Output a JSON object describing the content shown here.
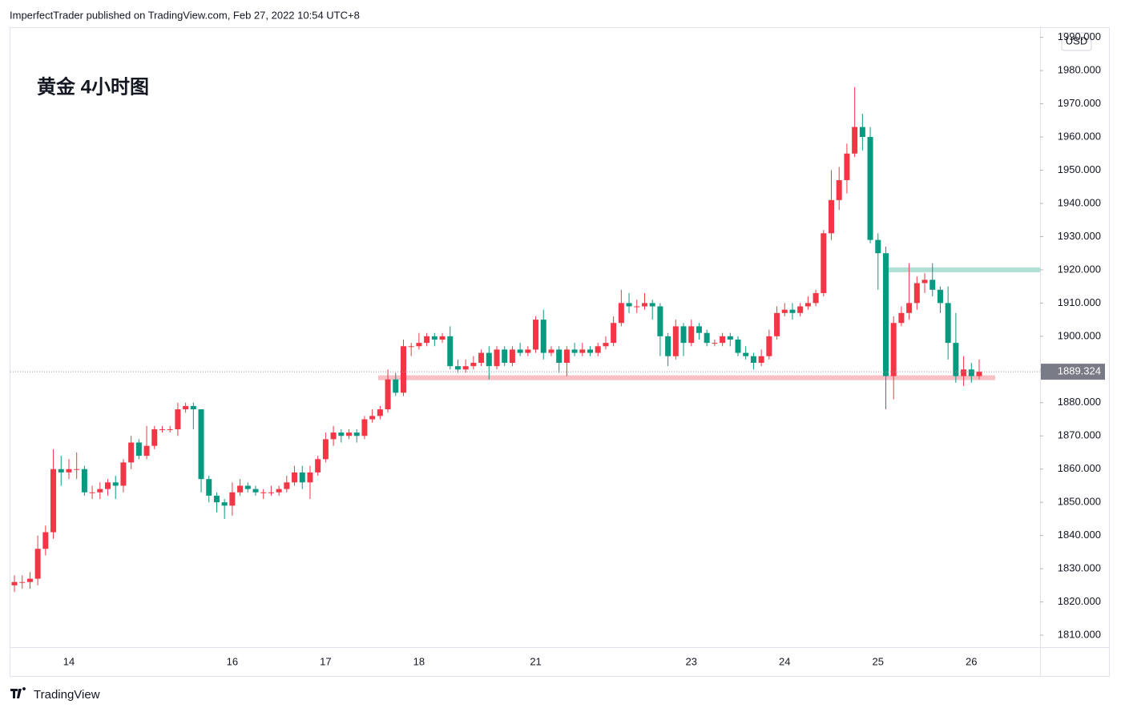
{
  "header": {
    "text": "ImperfectTrader published on TradingView.com, Feb 27, 2022 10:54 UTC+8"
  },
  "footer": {
    "brand": "TradingView"
  },
  "chart_data": {
    "type": "candlestick",
    "title": "黄金 4小时图",
    "currency": "USD",
    "up_color": "#f23645",
    "down_color": "#089981",
    "categories": [
      null,
      null,
      null,
      null,
      null,
      null,
      null,
      "14",
      null,
      null,
      null,
      null,
      null,
      null,
      null,
      null,
      null,
      null,
      null,
      null,
      null,
      null,
      null,
      null,
      null,
      null,
      null,
      null,
      "16",
      null,
      null,
      null,
      null,
      null,
      null,
      null,
      null,
      null,
      null,
      null,
      "17",
      null,
      null,
      null,
      null,
      null,
      null,
      null,
      null,
      null,
      null,
      null,
      "18",
      null,
      null,
      null,
      null,
      null,
      null,
      null,
      null,
      null,
      null,
      null,
      null,
      null,
      null,
      "21",
      null,
      null,
      null,
      null,
      null,
      null,
      null,
      null,
      null,
      null,
      null,
      null,
      null,
      null,
      null,
      null,
      null,
      null,
      null,
      "23",
      null,
      null,
      null,
      null,
      null,
      null,
      null,
      null,
      null,
      null,
      null,
      "24",
      null,
      null,
      null,
      null,
      null,
      null,
      null,
      null,
      null,
      null,
      null,
      "25",
      null,
      null,
      null,
      null,
      null,
      null,
      null,
      null,
      null,
      null,
      null,
      "26",
      null
    ],
    "open": [
      1825,
      1826,
      1826,
      1827,
      1836,
      1841,
      1860,
      1859,
      1860,
      1860,
      1853,
      1853,
      1854,
      1856,
      1855,
      1862,
      1868,
      1864,
      1867,
      1872,
      1872,
      1872,
      1878,
      1879,
      1878,
      1857,
      1852,
      1850,
      1849,
      1853,
      1855,
      1854,
      1853,
      1853,
      1853,
      1854,
      1856,
      1859,
      1856,
      1859,
      1863,
      1869,
      1871,
      1870,
      1871,
      1870,
      1875,
      1876,
      1878,
      1887,
      1883,
      1897,
      1897,
      1898,
      1900,
      1899,
      1900,
      1891,
      1890,
      1891,
      1892,
      1895,
      1891,
      1896,
      1892,
      1896,
      1895,
      1896,
      1905,
      1895,
      1896,
      1892,
      1896,
      1895,
      1896,
      1895,
      1897,
      1898,
      1904,
      1910,
      1909,
      1909,
      1910,
      1909,
      1900,
      1894,
      1903,
      1898,
      1903,
      1901,
      1898,
      1898,
      1900,
      1899,
      1895,
      1894,
      1892,
      1894,
      1900,
      1907,
      1908,
      1907,
      1909,
      1910,
      1913,
      1931,
      1941,
      1947,
      1955,
      1963,
      1960,
      1929,
      1925,
      1888,
      1904,
      1907,
      1910,
      1916,
      1917,
      1914,
      1910,
      1898,
      1888,
      1890,
      1888
    ],
    "high": [
      1828,
      1828,
      1829,
      1840,
      1843,
      1866,
      1864,
      1863,
      1865,
      1861,
      1855,
      1856,
      1857,
      1858,
      1863,
      1870,
      1869,
      1873,
      1873,
      1873,
      1873,
      1880,
      1880,
      1880,
      1878,
      1858,
      1853,
      1851,
      1856,
      1857,
      1856,
      1855,
      1854,
      1855,
      1855,
      1858,
      1861,
      1861,
      1861,
      1864,
      1871,
      1873,
      1872,
      1872,
      1872,
      1876,
      1878,
      1879,
      1890,
      1889,
      1899,
      1898,
      1901,
      1901,
      1901,
      1901,
      1903,
      1893,
      1893,
      1894,
      1896,
      1897,
      1897,
      1897,
      1897,
      1898,
      1897,
      1906,
      1908,
      1897,
      1897,
      1897,
      1898,
      1898,
      1897,
      1898,
      1900,
      1906,
      1914,
      1913,
      1911,
      1913,
      1911,
      1910,
      1901,
      1905,
      1904,
      1905,
      1904,
      1902,
      1899,
      1901,
      1901,
      1900,
      1897,
      1895,
      1896,
      1902,
      1909,
      1910,
      1910,
      1910,
      1912,
      1914,
      1932,
      1950,
      1951,
      1958,
      1975,
      1967,
      1963,
      1931,
      1927,
      1906,
      1909,
      1922,
      1918,
      1919,
      1922,
      1915,
      1915,
      1907,
      1894,
      1892,
      1893
    ],
    "low": [
      1823,
      1824,
      1824,
      1825,
      1834,
      1839,
      1855,
      1857,
      1857,
      1852,
      1851,
      1851,
      1852,
      1851,
      1853,
      1860,
      1863,
      1863,
      1866,
      1871,
      1871,
      1870,
      1877,
      1872,
      1853,
      1850,
      1847,
      1845,
      1846,
      1852,
      1853,
      1852,
      1851,
      1852,
      1852,
      1853,
      1855,
      1854,
      1851,
      1858,
      1862,
      1867,
      1868,
      1869,
      1868,
      1869,
      1874,
      1875,
      1877,
      1882,
      1882,
      1894,
      1896,
      1897,
      1897,
      1898,
      1890,
      1889,
      1889,
      1890,
      1891,
      1887,
      1890,
      1891,
      1891,
      1894,
      1894,
      1895,
      1893,
      1894,
      1889,
      1888,
      1894,
      1894,
      1894,
      1894,
      1896,
      1897,
      1903,
      1907,
      1907,
      1908,
      1905,
      1894,
      1891,
      1893,
      1894,
      1897,
      1899,
      1897,
      1897,
      1897,
      1897,
      1894,
      1893,
      1890,
      1891,
      1893,
      1899,
      1906,
      1905,
      1906,
      1908,
      1909,
      1912,
      1929,
      1938,
      1943,
      1954,
      1956,
      1928,
      1914,
      1878,
      1881,
      1903,
      1905,
      1908,
      1913,
      1912,
      1907,
      1893,
      1886,
      1885,
      1886,
      1887
    ],
    "close": [
      1826,
      1826,
      1827,
      1836,
      1841,
      1860,
      1859,
      1860,
      1860,
      1853,
      1853,
      1854,
      1856,
      1855,
      1862,
      1868,
      1864,
      1867,
      1872,
      1872,
      1872,
      1878,
      1879,
      1878,
      1857,
      1852,
      1850,
      1849,
      1853,
      1855,
      1854,
      1853,
      1853,
      1853,
      1854,
      1856,
      1859,
      1856,
      1859,
      1863,
      1869,
      1871,
      1870,
      1871,
      1870,
      1875,
      1876,
      1878,
      1887,
      1883,
      1897,
      1897,
      1898,
      1900,
      1899,
      1900,
      1891,
      1890,
      1891,
      1892,
      1895,
      1891,
      1896,
      1892,
      1896,
      1895,
      1896,
      1905,
      1895,
      1896,
      1892,
      1896,
      1895,
      1896,
      1895,
      1897,
      1898,
      1904,
      1910,
      1909,
      1909,
      1910,
      1909,
      1900,
      1894,
      1903,
      1898,
      1903,
      1901,
      1898,
      1898,
      1900,
      1899,
      1895,
      1894,
      1892,
      1894,
      1900,
      1907,
      1908,
      1907,
      1909,
      1910,
      1913,
      1931,
      1941,
      1947,
      1955,
      1963,
      1960,
      1929,
      1925,
      1888,
      1904,
      1907,
      1910,
      1916,
      1917,
      1914,
      1910,
      1898,
      1888,
      1890,
      1888,
      1889.324
    ],
    "zones": [
      {
        "value": 1920,
        "color": "#b2dfd3"
      },
      {
        "value": 1887.5,
        "color": "#f8bfc4"
      }
    ],
    "ylim": [
      1806.4,
      1992.8
    ],
    "yticks": [
      {
        "value": 1810,
        "label": "1810.000"
      },
      {
        "value": 1820,
        "label": "1820.000"
      },
      {
        "value": 1830,
        "label": "1830.000"
      },
      {
        "value": 1840,
        "label": "1840.000"
      },
      {
        "value": 1850,
        "label": "1850.000"
      },
      {
        "value": 1860,
        "label": "1860.000"
      },
      {
        "value": 1870,
        "label": "1870.000"
      },
      {
        "value": 1880,
        "label": "1880.000"
      },
      {
        "value": 1890,
        "label": "1890.000"
      },
      {
        "value": 1900,
        "label": "1900.000"
      },
      {
        "value": 1910,
        "label": "1910.000"
      },
      {
        "value": 1920,
        "label": "1920.000"
      },
      {
        "value": 1930,
        "label": "1930.000"
      },
      {
        "value": 1940,
        "label": "1940.000"
      },
      {
        "value": 1950,
        "label": "1950.000"
      },
      {
        "value": 1960,
        "label": "1960.000"
      },
      {
        "value": 1970,
        "label": "1970.000"
      },
      {
        "value": 1980,
        "label": "1980.000"
      },
      {
        "value": 1990,
        "label": "1990.000"
      }
    ]
  }
}
